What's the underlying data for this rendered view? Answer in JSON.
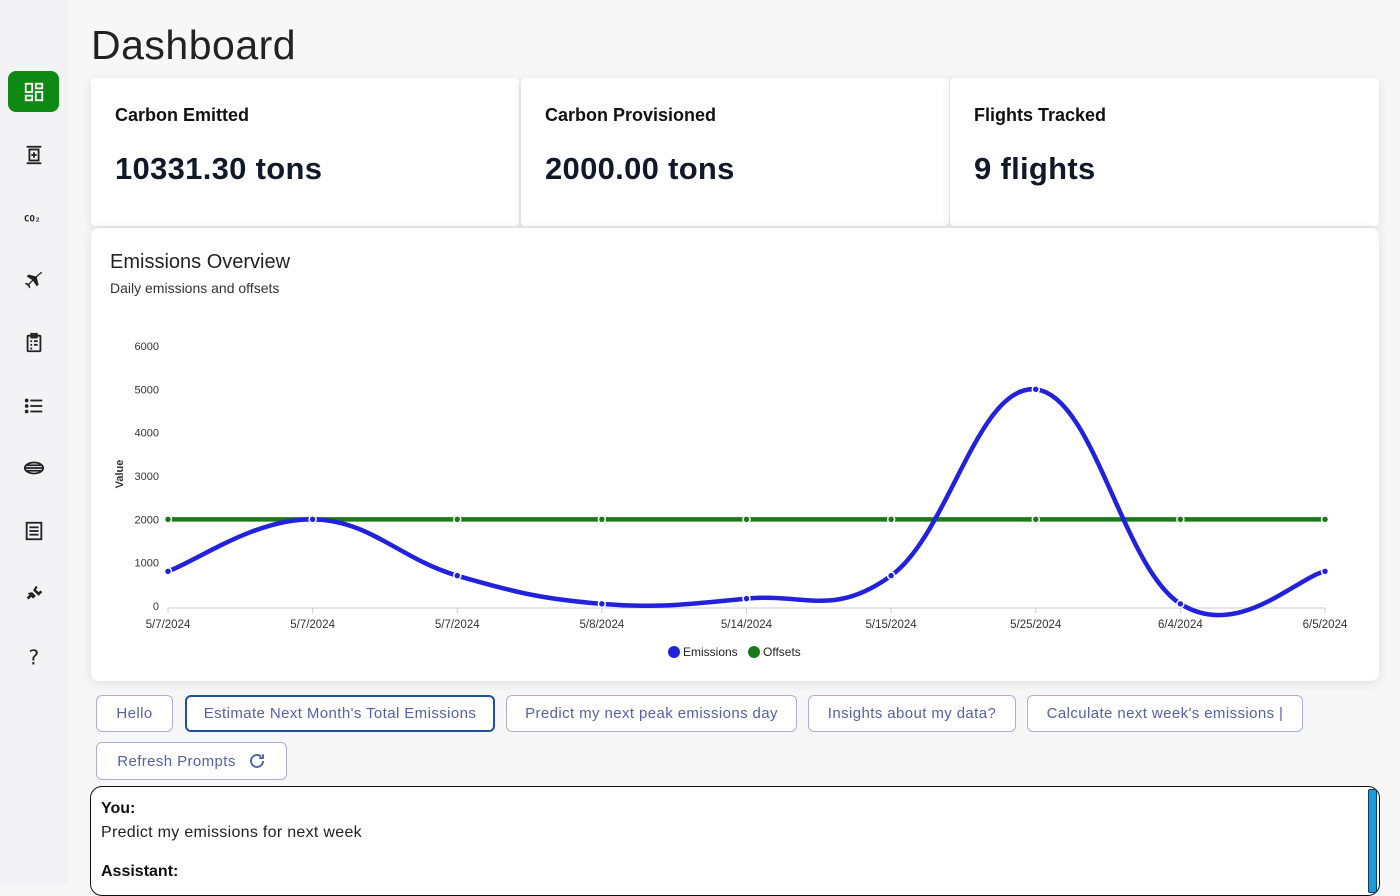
{
  "page": {
    "title": "Dashboard"
  },
  "sidebar": {
    "items": [
      {
        "name": "dashboard-icon",
        "active": true
      },
      {
        "name": "building-icon",
        "active": false
      },
      {
        "name": "co2-icon",
        "active": false
      },
      {
        "name": "airplane-icon",
        "active": false
      },
      {
        "name": "clipboard-icon",
        "active": false
      },
      {
        "name": "list-icon",
        "active": false
      },
      {
        "name": "globe-icon",
        "active": false
      },
      {
        "name": "receipt-icon",
        "active": false
      },
      {
        "name": "plug-icon",
        "active": false
      },
      {
        "name": "help-icon",
        "active": false
      }
    ],
    "active_color": "#0e8a14"
  },
  "cards": [
    {
      "label": "Carbon Emitted",
      "value": "10331.30 tons"
    },
    {
      "label": "Carbon Provisioned",
      "value": "2000.00 tons"
    },
    {
      "label": "Flights Tracked",
      "value": "9 flights"
    }
  ],
  "chart_panel": {
    "title": "Emissions Overview",
    "subtitle": "Daily emissions and offsets"
  },
  "chart_data": {
    "type": "line",
    "categories": [
      "5/7/2024",
      "5/7/2024",
      "5/7/2024",
      "5/8/2024",
      "5/14/2024",
      "5/15/2024",
      "5/25/2024",
      "6/4/2024",
      "6/5/2024"
    ],
    "series": [
      {
        "name": "Emissions",
        "color": "#2222dd",
        "values": [
          800,
          2000,
          700,
          50,
          170,
          700,
          5000,
          50,
          800
        ]
      },
      {
        "name": "Offsets",
        "color": "#1a7a1a",
        "values": [
          2000,
          2000,
          2000,
          2000,
          2000,
          2000,
          2000,
          2000,
          2000
        ]
      }
    ],
    "ylabel": "Value",
    "xlabel": "",
    "ylim": [
      0,
      6000
    ],
    "yticks": [
      0,
      1000,
      2000,
      3000,
      4000,
      5000,
      6000
    ],
    "legend": "bottom-center",
    "grid": false
  },
  "prompts": [
    {
      "label": "Hello"
    },
    {
      "label": "Estimate Next Month's Total Emissions"
    },
    {
      "label": "Predict my next peak emissions day"
    },
    {
      "label": "Insights about my data?"
    },
    {
      "label": "Calculate next week's emissions |"
    }
  ],
  "refresh": {
    "label": "Refresh Prompts",
    "icon": "refresh-icon"
  },
  "chat": {
    "messages": [
      {
        "role": "You:",
        "text": "Predict my emissions for next week"
      },
      {
        "role": "Assistant:",
        "text": ""
      }
    ]
  }
}
